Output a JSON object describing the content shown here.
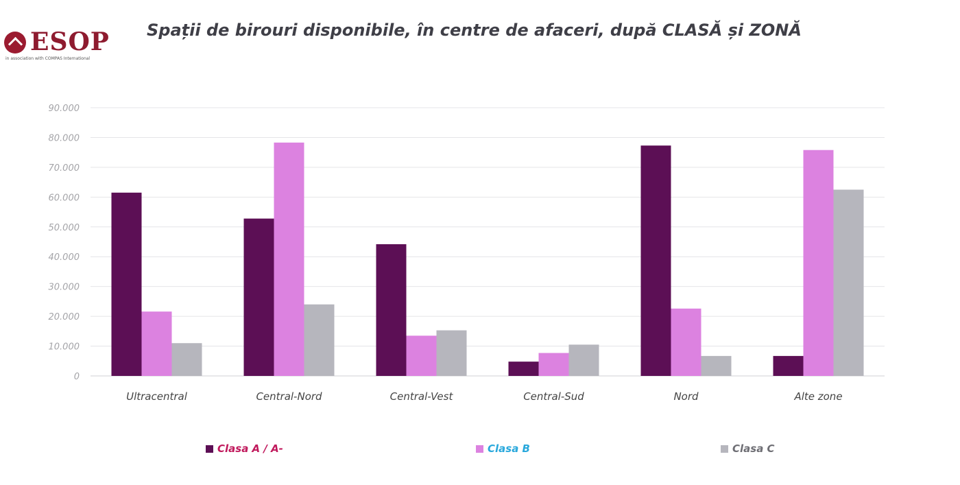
{
  "logo": {
    "text": "ESOP",
    "sub": "in association with COMPAS International"
  },
  "chart_data": {
    "type": "bar",
    "title": "Spații de birouri disponibile, în centre de afaceri, după CLASĂ și ZONĂ",
    "xlabel": "",
    "ylabel": "",
    "categories": [
      "Ultracentral",
      "Central-Nord",
      "Central-Vest",
      "Central-Sud",
      "Nord",
      "Alte zone"
    ],
    "series": [
      {
        "name": "Clasa A / A-",
        "color": "#5c0f55",
        "label_color": "#c0195c",
        "values": [
          61500,
          52800,
          44200,
          4800,
          77300,
          6700
        ]
      },
      {
        "name": "Clasa B",
        "color": "#dc82e0",
        "label_color": "#29a8dc",
        "values": [
          21600,
          78300,
          13500,
          7700,
          22600,
          75800
        ]
      },
      {
        "name": "Clasa C",
        "color": "#b6b6bd",
        "label_color": "#6e6e74",
        "values": [
          11000,
          24000,
          15300,
          10500,
          6700,
          62500
        ]
      }
    ],
    "yticks": [
      "0",
      "10.000",
      "20.000",
      "30.000",
      "40.000",
      "50.000",
      "60.000",
      "70.000",
      "80.000",
      "90.000"
    ],
    "ylim": [
      0,
      90000
    ],
    "grid": true,
    "legend_position": "bottom"
  }
}
